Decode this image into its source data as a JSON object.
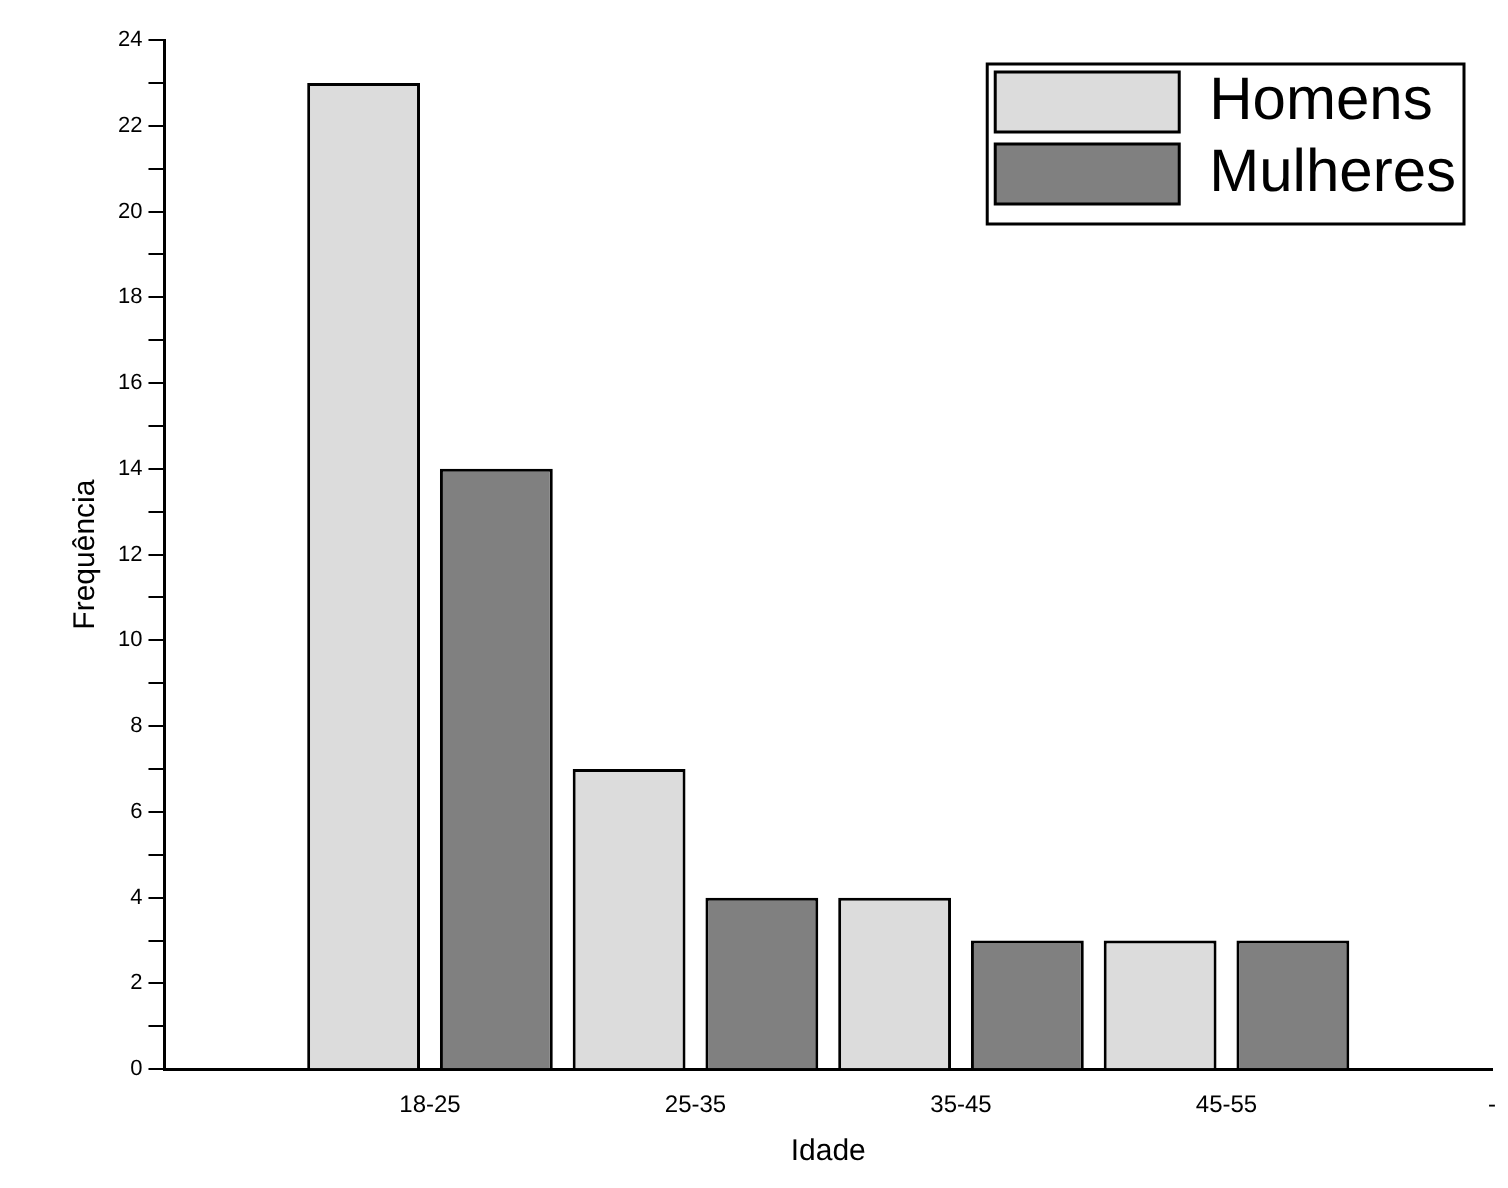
{
  "chart_data": {
    "type": "bar",
    "xlabel": "Idade",
    "ylabel": "Frequência",
    "categories": [
      null,
      "18-25",
      "25-35",
      "35-45",
      "45-55",
      "-"
    ],
    "series": [
      {
        "name": "Homens",
        "color": "#dcdcdc",
        "values": [
          null,
          23,
          7,
          4,
          3,
          null
        ]
      },
      {
        "name": "Mulheres",
        "color": "#808080",
        "values": [
          null,
          14,
          4,
          3,
          3,
          null
        ]
      }
    ],
    "ylim": [
      0,
      24
    ],
    "yticks": [
      0,
      {
        "value": 1,
        "label": null
      },
      2,
      {
        "value": 3,
        "label": null
      },
      4,
      {
        "value": 5,
        "label": null
      },
      6,
      {
        "value": 7,
        "label": null
      },
      8,
      {
        "value": 9,
        "label": null
      },
      10,
      {
        "value": 11,
        "label": null
      },
      12,
      {
        "value": 13,
        "label": null
      },
      14,
      {
        "value": 15,
        "label": null
      },
      16,
      {
        "value": 17,
        "label": null
      },
      18,
      {
        "value": 19,
        "label": null
      },
      20,
      {
        "value": 21,
        "label": null
      },
      22,
      {
        "value": 23,
        "label": null
      },
      24
    ],
    "grid": false,
    "legend": "top right"
  }
}
